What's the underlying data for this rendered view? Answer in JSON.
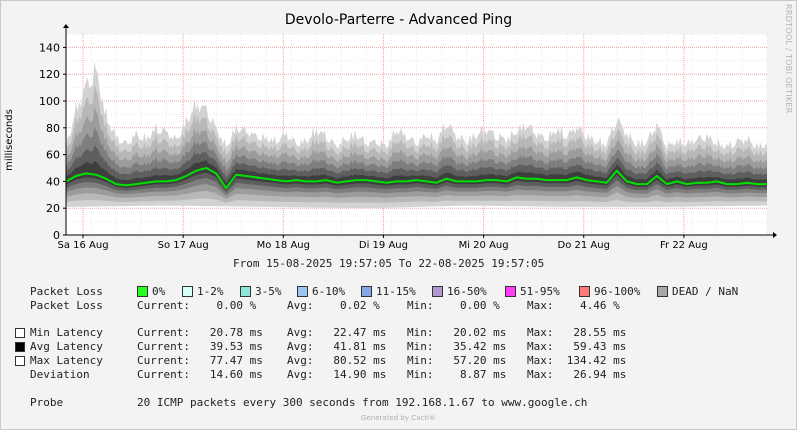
{
  "title": "Devolo-Parterre - Advanced Ping",
  "watermark": "RRDTOOL / TOBI OETIKER",
  "range_text": "From 15-08-2025 19:57:05 To 22-08-2025 19:57:05",
  "generated_by": "Generated by Cacti®",
  "chart_data": {
    "type": "line",
    "title": "Devolo-Parterre - Advanced Ping",
    "ylabel": "milliseconds",
    "ylim": [
      0,
      150
    ],
    "yticks": [
      0,
      20,
      40,
      60,
      80,
      100,
      120,
      140
    ],
    "xlim": [
      0,
      7
    ],
    "x_unit": "days from 15-08-2025 19:57",
    "xticks": [
      {
        "x": 0.17,
        "label": "Sa 16 Aug"
      },
      {
        "x": 1.17,
        "label": "So 17 Aug"
      },
      {
        "x": 2.17,
        "label": "Mo 18 Aug"
      },
      {
        "x": 3.17,
        "label": "Di 19 Aug"
      },
      {
        "x": 4.17,
        "label": "Mi 20 Aug"
      },
      {
        "x": 5.17,
        "label": "Do 21 Aug"
      },
      {
        "x": 6.17,
        "label": "Fr 22 Aug"
      }
    ],
    "grid": true,
    "series": [
      {
        "name": "Avg Latency",
        "color": "#00e100",
        "x": [
          0,
          0.1,
          0.2,
          0.3,
          0.4,
          0.5,
          0.6,
          0.7,
          0.8,
          0.9,
          1.0,
          1.1,
          1.2,
          1.3,
          1.4,
          1.5,
          1.6,
          1.7,
          1.8,
          1.9,
          2.0,
          2.1,
          2.2,
          2.3,
          2.4,
          2.5,
          2.6,
          2.7,
          2.8,
          2.9,
          3.0,
          3.1,
          3.2,
          3.3,
          3.4,
          3.5,
          3.6,
          3.7,
          3.8,
          3.9,
          4.0,
          4.1,
          4.2,
          4.3,
          4.4,
          4.5,
          4.6,
          4.7,
          4.8,
          4.9,
          5.0,
          5.1,
          5.2,
          5.3,
          5.4,
          5.5,
          5.6,
          5.7,
          5.8,
          5.9,
          6.0,
          6.1,
          6.2,
          6.3,
          6.4,
          6.5,
          6.6,
          6.7,
          6.8,
          6.9,
          7.0
        ],
        "values": [
          40,
          44,
          46,
          45,
          42,
          38,
          37,
          38,
          39,
          40,
          40,
          41,
          44,
          48,
          50,
          46,
          35,
          45,
          44,
          43,
          42,
          41,
          40,
          41,
          40,
          40,
          41,
          39,
          40,
          41,
          41,
          40,
          39,
          40,
          40,
          41,
          40,
          39,
          42,
          40,
          40,
          40,
          41,
          41,
          40,
          43,
          42,
          42,
          41,
          41,
          41,
          43,
          41,
          40,
          39,
          48,
          40,
          38,
          38,
          44,
          38,
          40,
          38,
          39,
          39,
          40,
          38,
          38,
          39,
          38,
          38
        ]
      },
      {
        "name": "Max Latency",
        "x": [
          0,
          0.1,
          0.2,
          0.3,
          0.4,
          0.5,
          0.6,
          0.7,
          0.8,
          0.9,
          1.0,
          1.1,
          1.2,
          1.3,
          1.4,
          1.5,
          1.6,
          1.7,
          1.8,
          1.9,
          2.0,
          2.1,
          2.2,
          2.3,
          2.4,
          2.5,
          2.6,
          2.7,
          2.8,
          2.9,
          3.0,
          3.1,
          3.2,
          3.3,
          3.4,
          3.5,
          3.6,
          3.7,
          3.8,
          3.9,
          4.0,
          4.1,
          4.2,
          4.3,
          4.4,
          4.5,
          4.6,
          4.7,
          4.8,
          4.9,
          5.0,
          5.1,
          5.2,
          5.3,
          5.4,
          5.5,
          5.6,
          5.7,
          5.8,
          5.9,
          6.0,
          6.1,
          6.2,
          6.3,
          6.4,
          6.5,
          6.6,
          6.7,
          6.8,
          6.9,
          7.0
        ],
        "values": [
          70,
          100,
          120,
          134,
          95,
          78,
          72,
          80,
          76,
          85,
          82,
          75,
          90,
          105,
          100,
          84,
          70,
          85,
          82,
          78,
          76,
          74,
          80,
          72,
          74,
          84,
          78,
          70,
          76,
          80,
          72,
          74,
          70,
          84,
          78,
          72,
          80,
          74,
          90,
          78,
          74,
          80,
          84,
          78,
          76,
          82,
          88,
          80,
          76,
          84,
          78,
          86,
          78,
          74,
          72,
          92,
          80,
          72,
          74,
          88,
          70,
          74,
          72,
          76,
          78,
          72,
          70,
          74,
          76,
          70,
          72
        ]
      },
      {
        "name": "Min Latency",
        "x": [
          0,
          1,
          2,
          3,
          4,
          5,
          6,
          7
        ],
        "values": [
          21,
          22,
          21,
          20,
          22,
          21,
          21,
          22
        ]
      }
    ]
  },
  "legend": {
    "packet_loss_label": "Packet Loss",
    "loss_buckets": [
      {
        "label": "0%",
        "color": "#26ff26"
      },
      {
        "label": "1-2%",
        "color": "#d6fff6"
      },
      {
        "label": "3-5%",
        "color": "#8ee6d6"
      },
      {
        "label": "6-10%",
        "color": "#9ec7f0"
      },
      {
        "label": "11-15%",
        "color": "#86a6e6"
      },
      {
        "label": "16-50%",
        "color": "#b097d0"
      },
      {
        "label": "51-95%",
        "color": "#ff3df7"
      },
      {
        "label": "96-100%",
        "color": "#ff7a7a"
      },
      {
        "label": "DEAD / NaN",
        "color": "#a8a8a8"
      }
    ],
    "loss_stats": {
      "label": "Packet Loss",
      "current": "Current:    0.00 %",
      "avg": "Avg:    0.02 %",
      "min": "Min:    0.00 %",
      "max": "Max:    4.46 %"
    },
    "latency_rows": [
      {
        "label": "Min Latency",
        "swatch": "#ffffff",
        "current": "Current:   20.78 ms",
        "avg": "Avg:   22.47 ms",
        "min": "Min:   20.02 ms",
        "max": "Max:   28.55 ms"
      },
      {
        "label": "Avg Latency",
        "swatch": "#000000",
        "current": "Current:   39.53 ms",
        "avg": "Avg:   41.81 ms",
        "min": "Min:   35.42 ms",
        "max": "Max:   59.43 ms"
      },
      {
        "label": "Max Latency",
        "swatch": "#ffffff",
        "current": "Current:   77.47 ms",
        "avg": "Avg:   80.52 ms",
        "min": "Min:   57.20 ms",
        "max": "Max:  134.42 ms"
      },
      {
        "label": "Deviation",
        "current": "Current:   14.60 ms",
        "avg": "Avg:   14.90 ms",
        "min": "Min:    8.87 ms",
        "max": "Max:   26.94 ms"
      }
    ],
    "probe": {
      "label": "Probe",
      "text": "20 ICMP packets every 300 seconds from 192.168.1.67 to www.google.ch"
    }
  }
}
